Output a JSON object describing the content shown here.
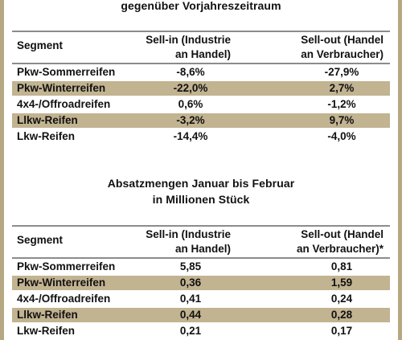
{
  "table1": {
    "title": "gegenüber Vorjahreszeitraum",
    "headers": {
      "segment": "Segment",
      "sell_in": "Sell-in (Industrie\nan Handel)",
      "sell_out": "Sell-out (Handel\nan Verbraucher)"
    },
    "rows": [
      {
        "segment": "Pkw-Sommerreifen",
        "sell_in": "-8,6%",
        "sell_out": "-27,9%"
      },
      {
        "segment": "Pkw-Winterreifen",
        "sell_in": "-22,0%",
        "sell_out": "2,7%"
      },
      {
        "segment": "4x4-/Offroadreifen",
        "sell_in": "0,6%",
        "sell_out": "-1,2%"
      },
      {
        "segment": "Llkw-Reifen",
        "sell_in": "-3,2%",
        "sell_out": "9,7%"
      },
      {
        "segment": "Lkw-Reifen",
        "sell_in": "-14,4%",
        "sell_out": "-4,0%"
      }
    ]
  },
  "table2": {
    "title": "Absatzmengen Januar bis Februar",
    "subtitle": "in Millionen Stück",
    "headers": {
      "segment": "Segment",
      "sell_in": "Sell-in (Industrie\nan Handel)",
      "sell_out": "Sell-out (Handel\nan Verbraucher)*"
    },
    "rows": [
      {
        "segment": "Pkw-Sommerreifen",
        "sell_in": "5,85",
        "sell_out": "0,81"
      },
      {
        "segment": "Pkw-Winterreifen",
        "sell_in": "0,36",
        "sell_out": "1,59"
      },
      {
        "segment": "4x4-/Offroadreifen",
        "sell_in": "0,41",
        "sell_out": "0,24"
      },
      {
        "segment": "Llkw-Reifen",
        "sell_in": "0,44",
        "sell_out": "0,28"
      },
      {
        "segment": "Lkw-Reifen",
        "sell_in": "0,21",
        "sell_out": "0,17"
      }
    ]
  },
  "colors": {
    "shade": "#c2b391",
    "border": "#b5a883",
    "rule": "#8c8c8c"
  }
}
